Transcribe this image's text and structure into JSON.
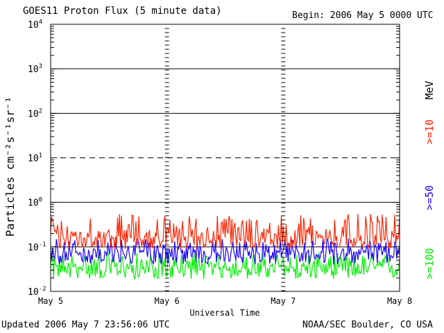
{
  "header": {
    "title": "GOES11 Proton Flux (5 minute data)",
    "begin": "Begin: 2006 May 5 0000 UTC"
  },
  "footer": {
    "updated": "Updated 2006 May  7 23:56:06 UTC",
    "source": "NOAA/SEC Boulder, CO USA"
  },
  "colors": {
    "ge10": "#ff2200",
    "ge50": "#1a00ff",
    "ge100": "#00ee00"
  },
  "chart_data": {
    "type": "line",
    "ylabel": "Particles cm⁻²s⁻¹sr⁻¹",
    "xlabel": "Universal Time",
    "yscale": "log",
    "ylim": [
      0.01,
      10000
    ],
    "y_tick_labels": [
      {
        "base": "10",
        "exp": "-2"
      },
      {
        "base": "10",
        "exp": "-1"
      },
      {
        "base": "10",
        "exp": "0"
      },
      {
        "base": "10",
        "exp": "1"
      },
      {
        "base": "10",
        "exp": "2"
      },
      {
        "base": "10",
        "exp": "3"
      },
      {
        "base": "10",
        "exp": "4"
      }
    ],
    "x_tick_labels": [
      "May 5",
      "May 6",
      "May 7",
      "May 8"
    ],
    "xlim_days": [
      0,
      3
    ],
    "reference_lines": [
      {
        "y": 10,
        "style": "dashed"
      },
      {
        "y": 1,
        "style": "solid"
      },
      {
        "y": 0.1,
        "style": "solid"
      }
    ],
    "grid": true,
    "legend_unit": "MeV",
    "series": [
      {
        "name": ">=10",
        "color": "#ff2200",
        "typical": 0.17,
        "min": 0.09,
        "max": 0.55
      },
      {
        "name": ">=50",
        "color": "#1a00ff",
        "typical": 0.075,
        "min": 0.04,
        "max": 0.16
      },
      {
        "name": ">=100",
        "color": "#00ee00",
        "typical": 0.035,
        "min": 0.019,
        "max": 0.075
      }
    ]
  }
}
